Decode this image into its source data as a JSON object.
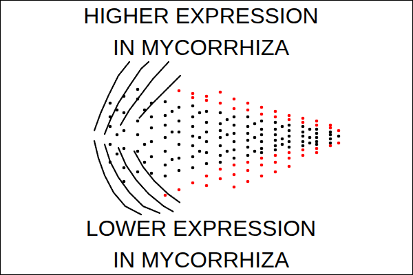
{
  "chart_data": {
    "type": "scatter",
    "annotations": [
      [
        "HIGHER EXPRESSION",
        "IN MYCORRHIZA"
      ],
      [
        "LOWER EXPRESSION",
        "IN MYCORRHIZA"
      ]
    ],
    "xlim": [
      0,
      15
    ],
    "ylim": [
      -10,
      10
    ],
    "tick_labels": false,
    "grid": false,
    "series": [
      {
        "type": "line",
        "color": "#000000",
        "x": [
          4.7,
          4.3,
          3.95,
          3.65,
          3.425
        ],
        "values": [
          5.5,
          4.5,
          3.1,
          1.75,
          0.5
        ]
      },
      {
        "type": "line",
        "color": "#000000",
        "x": [
          5.4,
          5.125,
          4.7,
          4.3,
          4.0,
          3.8
        ],
        "values": [
          5.5,
          5.0,
          3.75,
          2.5,
          1.25,
          0.25
        ]
      },
      {
        "type": "line",
        "color": "#000000",
        "x": [
          6.125,
          5.55,
          5.075,
          4.7,
          4.375
        ],
        "values": [
          5.5,
          4.25,
          3.0,
          2.0,
          0.9
        ]
      },
      {
        "type": "line",
        "color": "#000000",
        "x": [
          6.55,
          6.0,
          5.5,
          5.05
        ],
        "values": [
          4.5,
          3.4,
          2.4,
          1.4
        ]
      },
      {
        "type": "line",
        "color": "#000000",
        "x": [
          3.425,
          3.575,
          3.8,
          4.125,
          4.55,
          5.125
        ],
        "values": [
          -0.25,
          -1.5,
          -2.75,
          -4.0,
          -5.0,
          -5.6
        ]
      },
      {
        "type": "line",
        "color": "#000000",
        "x": [
          3.8,
          4.0,
          4.3,
          4.7,
          5.2,
          5.8
        ],
        "values": [
          -0.5,
          -1.75,
          -2.9,
          -4.0,
          -5.0,
          -5.5
        ]
      },
      {
        "type": "line",
        "color": "#000000",
        "x": [
          4.3,
          4.575,
          4.95,
          5.4,
          5.95,
          6.3
        ],
        "values": [
          -0.75,
          -2.0,
          -3.1,
          -4.1,
          -5.0,
          -5.4
        ]
      },
      {
        "type": "line",
        "color": "#000000",
        "x": [
          4.875,
          5.2,
          5.6,
          6.1,
          6.55
        ],
        "values": [
          -1.0,
          -2.15,
          -3.15,
          -4.1,
          -4.75
        ]
      },
      {
        "type": "scatter",
        "color": "#000000",
        "x": [
          4.0,
          4.0,
          4.0,
          4.0,
          4.0,
          4.25,
          4.25,
          4.25,
          4.5,
          4.5,
          4.5,
          4.5,
          4.5,
          4.5,
          5.0,
          5.0,
          5.0,
          5.0,
          5.0,
          5.0,
          5.25,
          5.25,
          5.25,
          5.5,
          5.5,
          5.5,
          5.5,
          5.5,
          5.5,
          6.0,
          6.0,
          6.0,
          6.0,
          6.0,
          6.0,
          6.0,
          6.25,
          6.25,
          6.25,
          6.5,
          6.5,
          6.5,
          6.5,
          6.5,
          6.5,
          7.0,
          7.0,
          7.0,
          7.0,
          7.0,
          7.0,
          7.0,
          7.25,
          7.25,
          7.25,
          7.5,
          7.5,
          7.5,
          7.5,
          7.5,
          7.5,
          8.0,
          8.0,
          8.0,
          8.0,
          8.0,
          8.0,
          8.0,
          8.25,
          8.25,
          8.25,
          8.5,
          8.5,
          8.5,
          8.5,
          8.5,
          8.5,
          9.0,
          9.0,
          9.0,
          9.0,
          9.0,
          9.0,
          9.25,
          9.25,
          9.25,
          9.5,
          9.5,
          9.5,
          9.5,
          9.5,
          9.5,
          10.0,
          10.0,
          10.0,
          10.0,
          10.0,
          10.0,
          10.25,
          10.25,
          10.25,
          10.5,
          10.5,
          10.5,
          10.5,
          10.5,
          11.0,
          11.0,
          11.0,
          11.0,
          11.0,
          11.25,
          11.25,
          11.25,
          11.5,
          11.5,
          11.5,
          11.5,
          11.5,
          12.0,
          12.0,
          12.0,
          12.0,
          12.3
        ],
        "values": [
          1.5,
          -0.5,
          0.8,
          -1.8,
          2.5,
          2.0,
          -1.2,
          0.2,
          3.0,
          1.8,
          0.5,
          -0.8,
          -2.2,
          -3.2,
          3.5,
          2.8,
          1.2,
          0.2,
          -1.0,
          -2.5,
          2.0,
          -0.5,
          -1.8,
          2.5,
          1.5,
          0.7,
          -0.3,
          -1.4,
          -2.6,
          2.6,
          1.6,
          0.9,
          0.0,
          -1.0,
          -2.0,
          -2.8,
          1.9,
          0.4,
          -1.6,
          2.2,
          1.2,
          0.4,
          -0.5,
          -1.5,
          -2.4,
          2.3,
          1.5,
          0.8,
          0.1,
          -0.6,
          -1.4,
          -2.2,
          1.8,
          0.0,
          -1.0,
          1.9,
          1.1,
          0.4,
          -0.3,
          -1.1,
          -1.9,
          1.8,
          1.0,
          0.5,
          0.0,
          -0.6,
          -1.3,
          -1.8,
          1.3,
          0.2,
          -1.0,
          1.5,
          0.9,
          0.3,
          -0.3,
          -0.9,
          -1.5,
          1.5,
          0.8,
          0.3,
          -0.2,
          -0.7,
          -1.3,
          1.0,
          0.0,
          -1.0,
          1.2,
          0.6,
          0.2,
          -0.3,
          -0.8,
          -1.1,
          1.1,
          0.6,
          0.2,
          -0.2,
          -0.6,
          -0.9,
          0.8,
          -0.1,
          -0.5,
          0.9,
          0.5,
          0.1,
          -0.3,
          -0.7,
          0.8,
          0.4,
          0.1,
          -0.3,
          -0.6,
          0.6,
          0.0,
          -0.4,
          0.6,
          0.3,
          0.0,
          -0.3,
          -0.5,
          0.4,
          0.2,
          -0.1,
          -0.4,
          0.1
        ]
      },
      {
        "type": "scatter",
        "color": "#ff0000",
        "x": [
          6.0,
          6.5,
          6.5,
          7.0,
          7.0,
          7.0,
          7.5,
          7.5,
          7.5,
          7.5,
          8.0,
          8.0,
          8.0,
          8.0,
          8.5,
          8.5,
          8.5,
          8.5,
          8.5,
          9.0,
          9.0,
          9.0,
          9.0,
          9.0,
          9.5,
          9.5,
          9.5,
          9.5,
          9.5,
          10.0,
          10.0,
          10.0,
          10.0,
          10.0,
          10.5,
          10.5,
          10.5,
          10.5,
          10.5,
          11.0,
          11.0,
          11.0,
          11.0,
          11.5,
          11.5,
          11.5,
          11.5,
          12.0,
          12.0,
          12.0,
          12.3,
          12.3
        ],
        "values": [
          -4.2,
          3.4,
          -3.8,
          3.2,
          2.9,
          -3.3,
          3.0,
          2.7,
          -2.8,
          -3.5,
          3.3,
          2.5,
          -2.3,
          -3.0,
          2.8,
          2.1,
          -2.0,
          -2.7,
          -3.6,
          2.5,
          2.0,
          -1.8,
          -2.4,
          -3.2,
          2.2,
          1.7,
          -1.5,
          -2.0,
          -2.8,
          1.9,
          1.5,
          -1.3,
          -1.8,
          -2.5,
          1.6,
          1.3,
          -1.1,
          -1.5,
          -2.1,
          1.4,
          1.1,
          -0.9,
          -1.3,
          1.2,
          0.9,
          -0.8,
          -1.1,
          0.9,
          0.7,
          -0.6,
          0.5,
          -0.4
        ]
      }
    ]
  }
}
